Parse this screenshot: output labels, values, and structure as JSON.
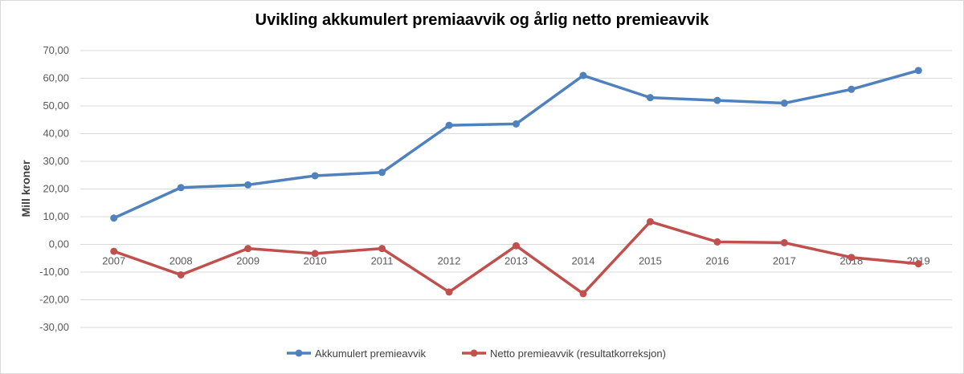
{
  "chart_data": {
    "type": "line",
    "title": "Uvikling akkumulert premiaavvik og årlig netto premieavvik",
    "ylabel": "Mill kroner",
    "xlabel": "",
    "ylim": [
      -30,
      70
    ],
    "y_ticks": [
      "-30,00",
      "-20,00",
      "-10,00",
      "0,00",
      "10,00",
      "20,00",
      "30,00",
      "40,00",
      "50,00",
      "60,00",
      "70,00"
    ],
    "categories": [
      "2007",
      "2008",
      "2009",
      "2010",
      "2011",
      "2012",
      "2013",
      "2014",
      "2015",
      "2016",
      "2017",
      "2018",
      "2019"
    ],
    "grid": true,
    "legend_position": "bottom",
    "series": [
      {
        "name": "Akkumulert premieavvik",
        "color": "#4f81bd",
        "values": [
          9.5,
          20.5,
          21.5,
          24.8,
          26.0,
          43.0,
          43.5,
          61.0,
          53.0,
          52.0,
          51.0,
          56.0,
          62.8
        ]
      },
      {
        "name": "Netto premieavvik (resultatkorreksjon)",
        "color": "#c0504d",
        "values": [
          -2.5,
          -11.0,
          -1.5,
          -3.3,
          -1.5,
          -17.2,
          -0.5,
          -17.8,
          8.2,
          0.9,
          0.6,
          -4.7,
          -7.0
        ]
      }
    ]
  }
}
